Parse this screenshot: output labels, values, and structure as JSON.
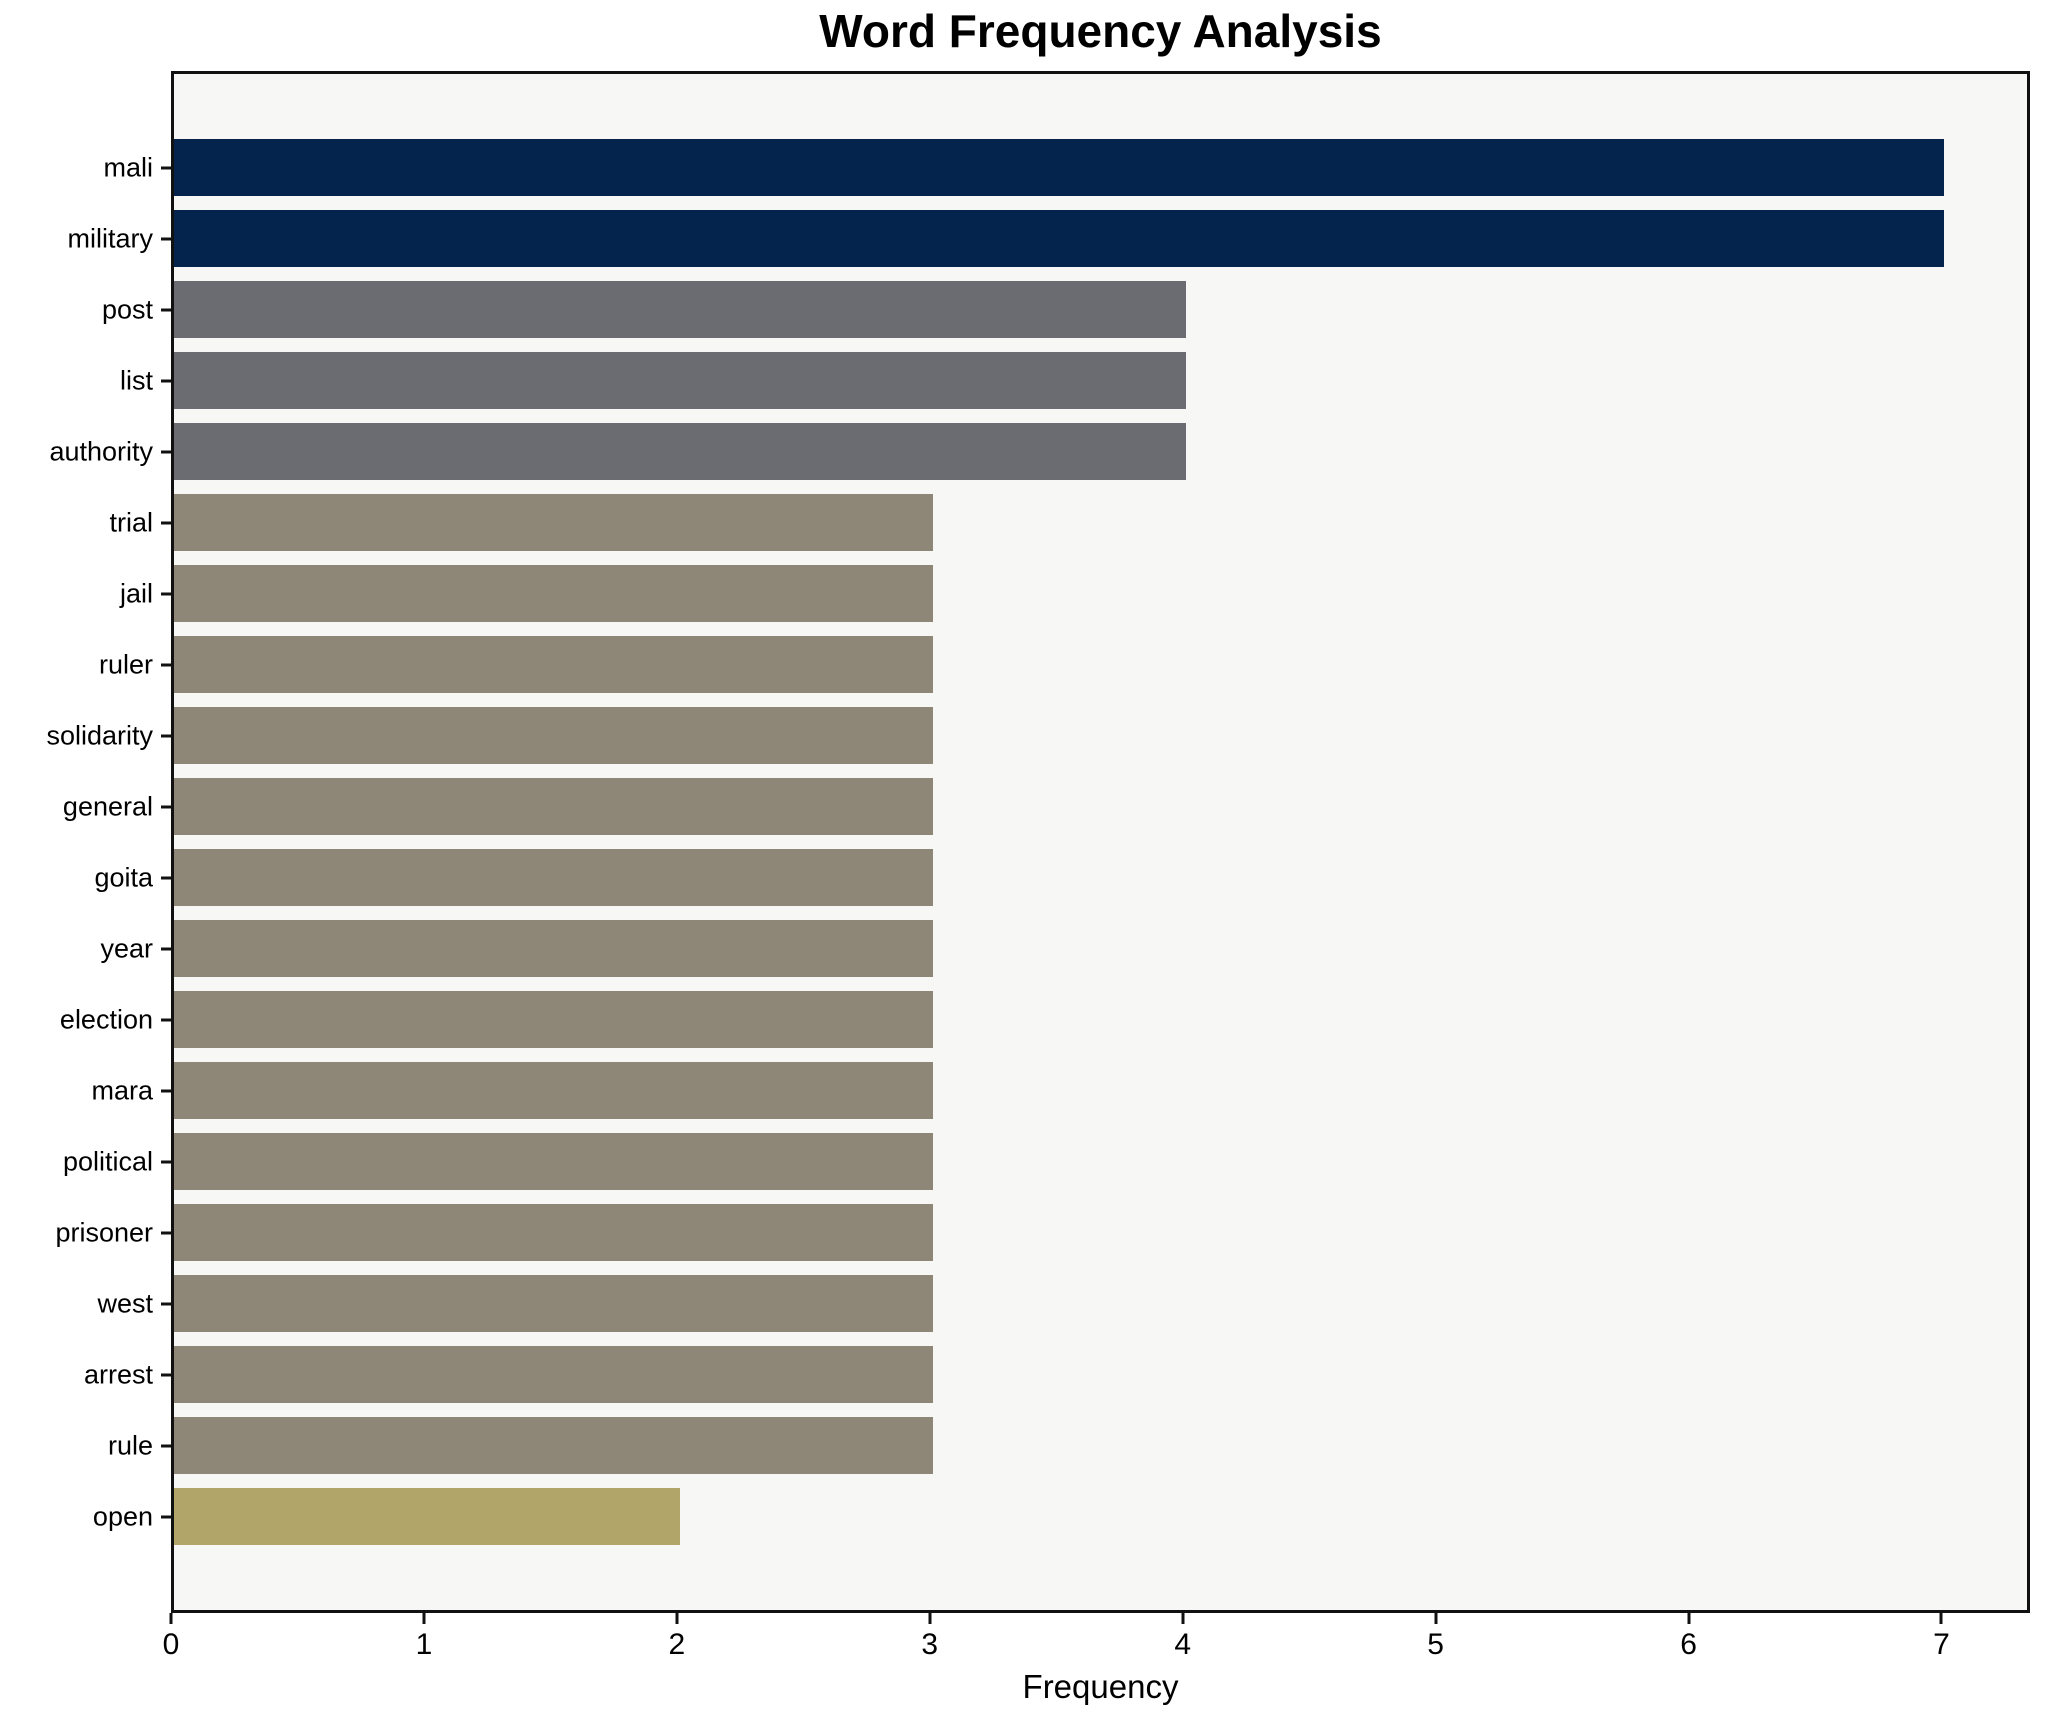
{
  "chart": {
    "title": "Word Frequency Analysis",
    "xlabel": "Frequency"
  },
  "chart_data": {
    "type": "bar",
    "orientation": "horizontal",
    "title": "Word Frequency Analysis",
    "xlabel": "Frequency",
    "ylabel": "",
    "categories": [
      "mali",
      "military",
      "post",
      "list",
      "authority",
      "trial",
      "jail",
      "ruler",
      "solidarity",
      "general",
      "goita",
      "year",
      "election",
      "mara",
      "political",
      "prisoner",
      "west",
      "arrest",
      "rule",
      "open"
    ],
    "values": [
      7,
      7,
      4,
      4,
      4,
      3,
      3,
      3,
      3,
      3,
      3,
      3,
      3,
      3,
      3,
      3,
      3,
      3,
      3,
      2
    ],
    "bar_colors": [
      "#04234d",
      "#04234d",
      "#6b6c71",
      "#6b6c71",
      "#6b6c71",
      "#8e8777",
      "#8e8777",
      "#8e8777",
      "#8e8777",
      "#8e8777",
      "#8e8777",
      "#8e8777",
      "#8e8777",
      "#8e8777",
      "#8e8777",
      "#8e8777",
      "#8e8777",
      "#8e8777",
      "#8e8777",
      "#b1a56a"
    ],
    "xlim": [
      0,
      7.35
    ],
    "xticks": [
      0,
      1,
      2,
      3,
      4,
      5,
      6,
      7
    ],
    "grid": false,
    "legend": false,
    "plot_background": "#f7f7f6",
    "figure_background": "#ffffff",
    "spine_color": "#111111",
    "palette_by_value": {
      "7": "#04234d",
      "4": "#6b6c71",
      "3": "#8e8777",
      "2": "#b1a56a"
    }
  }
}
